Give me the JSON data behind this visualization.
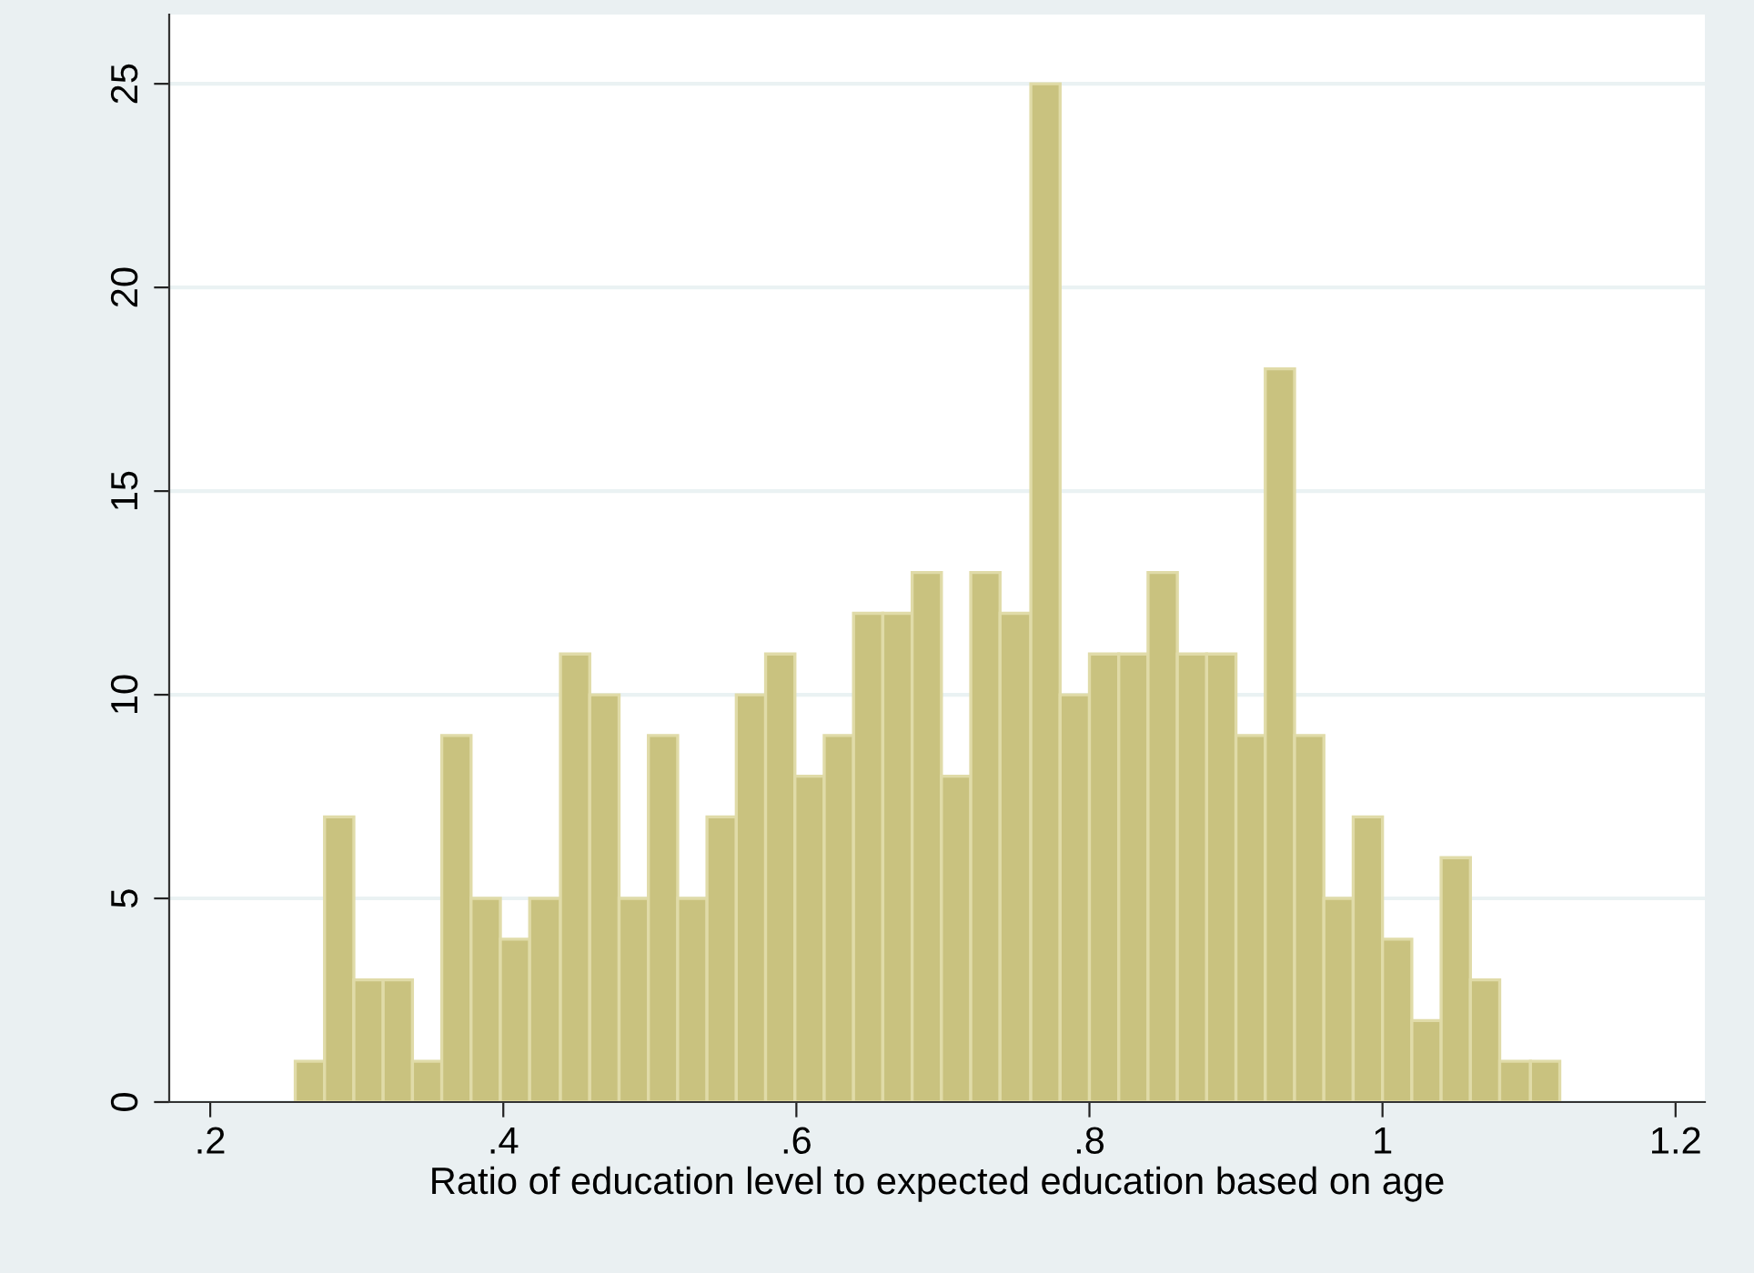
{
  "chart_data": {
    "type": "histogram",
    "xlabel": "Ratio of education level to expected education based on age",
    "bins": [
      0.258,
      0.278,
      0.298,
      0.318,
      0.338,
      0.358,
      0.378,
      0.398,
      0.418,
      0.439,
      0.459,
      0.479,
      0.499,
      0.519,
      0.539,
      0.559,
      0.579,
      0.599,
      0.619,
      0.639,
      0.659,
      0.679,
      0.699,
      0.719,
      0.739,
      0.76,
      0.78,
      0.8,
      0.82,
      0.84,
      0.86,
      0.88,
      0.9,
      0.92,
      0.94,
      0.96,
      0.98,
      1.0,
      1.02,
      1.04,
      1.06,
      1.08,
      1.101,
      1.121
    ],
    "values": [
      1,
      7,
      3,
      3,
      1,
      9,
      5,
      4,
      5,
      11,
      10,
      5,
      9,
      5,
      7,
      10,
      11,
      8,
      9,
      12,
      12,
      13,
      8,
      13,
      12,
      25,
      10,
      11,
      11,
      13,
      11,
      11,
      9,
      18,
      9,
      5,
      7,
      4,
      2,
      6,
      3,
      1,
      1
    ],
    "color": "#c9c27f",
    "xlim": [
      0.172,
      1.22
    ],
    "xticks": [
      {
        "value": 0.2,
        "label": ".2"
      },
      {
        "value": 0.4,
        "label": ".4"
      },
      {
        "value": 0.6,
        "label": ".6"
      },
      {
        "value": 0.8,
        "label": ".8"
      },
      1,
      1.2
    ],
    "ylim": [
      0,
      26.7
    ],
    "yticks": [
      0,
      5,
      10,
      15,
      20,
      25
    ],
    "grid": "y"
  }
}
